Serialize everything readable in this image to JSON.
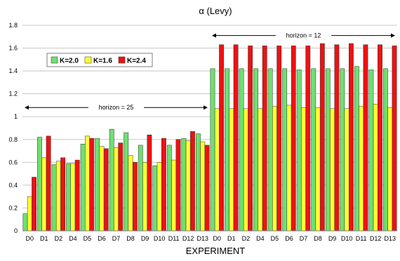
{
  "chart_data": {
    "type": "bar",
    "title": "α (Levy)",
    "xlabel": "EXPERIMENT",
    "ylabel": "",
    "ylim": [
      0,
      1.8
    ],
    "yticks": [
      0,
      0.2,
      0.4,
      0.6,
      0.8,
      1,
      1.2,
      1.4,
      1.6,
      1.8
    ],
    "ytick_labels": [
      "0",
      "0.2",
      "0.4",
      "0.6",
      "0.8",
      "1",
      "1.2",
      "1.4",
      "1.6",
      "1.8"
    ],
    "grid": "horizontal",
    "legend_position": "top-left",
    "categories": [
      "D0",
      "D1",
      "D2",
      "D4",
      "D5",
      "D6",
      "D7",
      "D8",
      "D9",
      "D10",
      "D11",
      "D12",
      "D13",
      "D0",
      "D1",
      "D2",
      "D4",
      "D5",
      "D6",
      "D7",
      "D8",
      "D9",
      "D10",
      "D11",
      "D12",
      "D13"
    ],
    "series": [
      {
        "name": "K=2.0",
        "color": "#6ee06e",
        "values": [
          0.15,
          0.82,
          0.58,
          0.59,
          0.76,
          0.81,
          0.89,
          0.86,
          0.75,
          0.57,
          0.75,
          0.81,
          0.85,
          1.42,
          1.42,
          1.42,
          1.42,
          1.42,
          1.42,
          1.41,
          1.42,
          1.42,
          1.42,
          1.44,
          1.41,
          1.42
        ]
      },
      {
        "name": "K=1.6",
        "color": "#ffff33",
        "values": [
          0.3,
          0.64,
          0.61,
          0.59,
          0.83,
          0.74,
          0.73,
          0.66,
          0.6,
          0.6,
          0.62,
          0.79,
          0.78,
          1.07,
          1.07,
          1.07,
          1.07,
          1.09,
          1.1,
          1.08,
          1.08,
          1.07,
          1.07,
          1.09,
          1.11,
          1.08
        ]
      },
      {
        "name": "K=2.4",
        "color": "#ee1111",
        "values": [
          0.47,
          0.83,
          0.64,
          0.62,
          0.81,
          0.72,
          0.77,
          0.6,
          0.84,
          0.81,
          0.8,
          0.87,
          0.75,
          1.63,
          1.63,
          1.62,
          1.62,
          1.62,
          1.62,
          1.62,
          1.64,
          1.63,
          1.64,
          1.63,
          1.63,
          1.62
        ]
      }
    ],
    "annotations": [
      {
        "text": "horizon = 25",
        "y": 1.08,
        "from_index": 0,
        "to_index": 12
      },
      {
        "text": "horizon = 12",
        "y": 1.71,
        "from_index": 13,
        "to_index": 25
      }
    ]
  }
}
